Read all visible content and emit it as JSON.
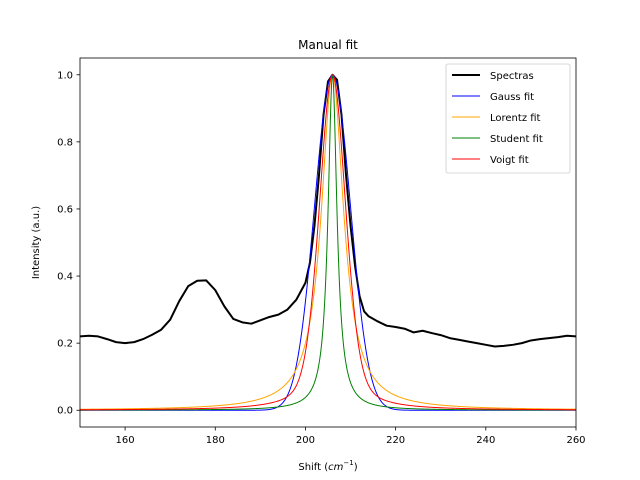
{
  "chart_data": {
    "type": "line",
    "title": "Manual fit",
    "xlabel": "Shift",
    "xlabel_unit_base": "cm",
    "xlabel_unit_exp": "−1",
    "ylabel": "Intensity (a.u.)",
    "xlim": [
      150,
      260
    ],
    "ylim": [
      -0.05,
      1.05
    ],
    "xticks": [
      160,
      180,
      200,
      220,
      240,
      260
    ],
    "yticks": [
      0.0,
      0.2,
      0.4,
      0.6,
      0.8,
      1.0
    ],
    "xtick_labels": [
      "160",
      "180",
      "200",
      "220",
      "240",
      "260"
    ],
    "ytick_labels": [
      "0.0",
      "0.2",
      "0.4",
      "0.6",
      "0.8",
      "1.0"
    ],
    "grid": false,
    "legend_position": "top-right",
    "series": [
      {
        "name": "Spectras",
        "color": "#000000",
        "width": 2,
        "kind": "points",
        "points": [
          [
            150,
            0.22
          ],
          [
            152,
            0.222
          ],
          [
            154,
            0.22
          ],
          [
            156,
            0.212
          ],
          [
            158,
            0.203
          ],
          [
            160,
            0.2
          ],
          [
            162,
            0.203
          ],
          [
            164,
            0.212
          ],
          [
            166,
            0.225
          ],
          [
            168,
            0.24
          ],
          [
            170,
            0.27
          ],
          [
            172,
            0.325
          ],
          [
            174,
            0.37
          ],
          [
            176,
            0.386
          ],
          [
            178,
            0.387
          ],
          [
            180,
            0.358
          ],
          [
            182,
            0.31
          ],
          [
            184,
            0.272
          ],
          [
            186,
            0.262
          ],
          [
            188,
            0.258
          ],
          [
            190,
            0.268
          ],
          [
            192,
            0.278
          ],
          [
            194,
            0.285
          ],
          [
            196,
            0.3
          ],
          [
            198,
            0.33
          ],
          [
            200,
            0.38
          ],
          [
            201,
            0.44
          ],
          [
            202,
            0.55
          ],
          [
            203,
            0.7
          ],
          [
            204,
            0.88
          ],
          [
            205,
            0.98
          ],
          [
            206,
            1.0
          ],
          [
            207,
            0.985
          ],
          [
            208,
            0.88
          ],
          [
            209,
            0.7
          ],
          [
            210,
            0.55
          ],
          [
            211,
            0.43
          ],
          [
            212,
            0.34
          ],
          [
            213,
            0.295
          ],
          [
            214,
            0.28
          ],
          [
            216,
            0.265
          ],
          [
            218,
            0.252
          ],
          [
            220,
            0.248
          ],
          [
            222,
            0.243
          ],
          [
            224,
            0.232
          ],
          [
            226,
            0.237
          ],
          [
            228,
            0.23
          ],
          [
            230,
            0.224
          ],
          [
            232,
            0.215
          ],
          [
            234,
            0.21
          ],
          [
            236,
            0.205
          ],
          [
            238,
            0.2
          ],
          [
            240,
            0.195
          ],
          [
            242,
            0.19
          ],
          [
            244,
            0.192
          ],
          [
            246,
            0.195
          ],
          [
            248,
            0.2
          ],
          [
            250,
            0.208
          ],
          [
            252,
            0.212
          ],
          [
            254,
            0.215
          ],
          [
            256,
            0.218
          ],
          [
            258,
            0.222
          ],
          [
            260,
            0.22
          ]
        ]
      },
      {
        "name": "Gauss fit",
        "color": "#0000ff",
        "width": 1,
        "kind": "gauss",
        "center": 206,
        "sigma": 4.0,
        "amplitude": 1.0
      },
      {
        "name": "Lorentz fit",
        "color": "#ffa500",
        "width": 1,
        "kind": "lorentz",
        "center": 206,
        "gamma": 3.0,
        "amplitude": 1.0
      },
      {
        "name": "Student fit",
        "color": "#008000",
        "width": 1,
        "kind": "student",
        "center": 206,
        "scale": 1.2,
        "amplitude": 1.0
      },
      {
        "name": "Voigt fit",
        "color": "#ff0000",
        "width": 1,
        "kind": "voigt",
        "center": 206,
        "sigma": 2.5,
        "gamma": 1.0,
        "amplitude": 1.0
      }
    ]
  }
}
